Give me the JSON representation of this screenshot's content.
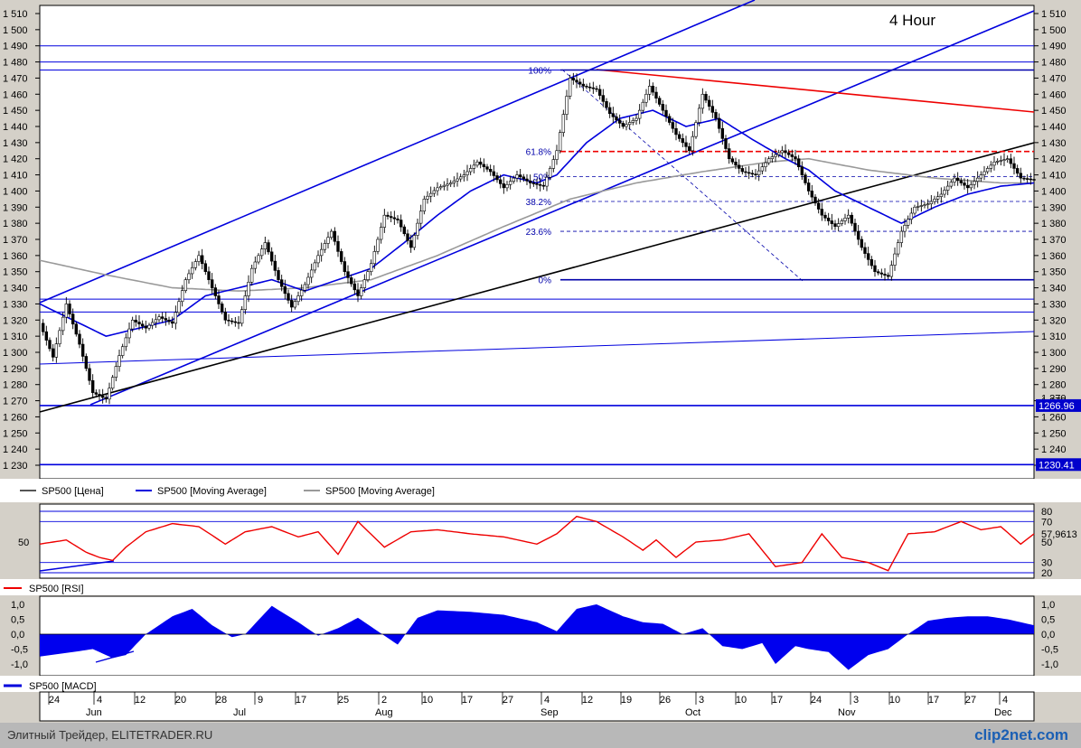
{
  "chart_data": [
    {
      "type": "candlestick",
      "title": "4 Hour",
      "ylim": [
        1225,
        1515
      ],
      "y_ticks": [
        "1 510",
        "1 500",
        "1 490",
        "1 480",
        "1 470",
        "1 460",
        "1 450",
        "1 440",
        "1 430",
        "1 420",
        "1 410",
        "1 400",
        "1 390",
        "1 380",
        "1 370",
        "1 360",
        "1 350",
        "1 340",
        "1 330",
        "1 320",
        "1 310",
        "1 300",
        "1 290",
        "1 280",
        "1 270",
        "1 260",
        "1 250",
        "1 240",
        "1 230"
      ],
      "y_tick_values": [
        1510,
        1500,
        1490,
        1480,
        1470,
        1460,
        1450,
        1440,
        1430,
        1420,
        1410,
        1400,
        1390,
        1380,
        1370,
        1360,
        1350,
        1340,
        1330,
        1320,
        1310,
        1300,
        1290,
        1280,
        1270,
        1260,
        1250,
        1240,
        1230
      ],
      "price_tags": [
        {
          "label": "1266.96",
          "value": 1267.0
        },
        {
          "label": "1230.41",
          "value": 1230.4
        }
      ],
      "partial_tick": {
        "label": "1 270",
        "value": 1270
      },
      "fib_levels": [
        {
          "label": "100%",
          "value": 1475
        },
        {
          "label": "61.8%",
          "value": 1424.5
        },
        {
          "label": "50%",
          "value": 1409
        },
        {
          "label": "38.2%",
          "value": 1393.5
        },
        {
          "label": "23.6%",
          "value": 1375
        },
        {
          "label": "0%",
          "value": 1345
        }
      ],
      "horizontal_levels": [
        1490,
        1480,
        1475,
        1333,
        1325,
        1267,
        1230.4
      ],
      "price_keypoints": [
        [
          0,
          1318
        ],
        [
          4,
          1297
        ],
        [
          8,
          1330
        ],
        [
          12,
          1305
        ],
        [
          16,
          1275
        ],
        [
          20,
          1271
        ],
        [
          24,
          1298
        ],
        [
          28,
          1320
        ],
        [
          32,
          1315
        ],
        [
          36,
          1322
        ],
        [
          40,
          1318
        ],
        [
          44,
          1345
        ],
        [
          48,
          1360
        ],
        [
          52,
          1340
        ],
        [
          56,
          1320
        ],
        [
          60,
          1318
        ],
        [
          64,
          1352
        ],
        [
          68,
          1368
        ],
        [
          72,
          1345
        ],
        [
          76,
          1328
        ],
        [
          80,
          1342
        ],
        [
          84,
          1360
        ],
        [
          88,
          1375
        ],
        [
          92,
          1350
        ],
        [
          96,
          1335
        ],
        [
          100,
          1355
        ],
        [
          104,
          1385
        ],
        [
          108,
          1382
        ],
        [
          112,
          1365
        ],
        [
          116,
          1395
        ],
        [
          120,
          1402
        ],
        [
          124,
          1405
        ],
        [
          128,
          1410
        ],
        [
          132,
          1418
        ],
        [
          136,
          1412
        ],
        [
          140,
          1402
        ],
        [
          144,
          1410
        ],
        [
          148,
          1405
        ],
        [
          152,
          1403
        ],
        [
          156,
          1425
        ],
        [
          160,
          1470
        ],
        [
          164,
          1465
        ],
        [
          168,
          1463
        ],
        [
          172,
          1448
        ],
        [
          176,
          1440
        ],
        [
          180,
          1445
        ],
        [
          184,
          1465
        ],
        [
          188,
          1450
        ],
        [
          192,
          1435
        ],
        [
          196,
          1425
        ],
        [
          200,
          1460
        ],
        [
          204,
          1445
        ],
        [
          208,
          1420
        ],
        [
          212,
          1412
        ],
        [
          216,
          1410
        ],
        [
          220,
          1420
        ],
        [
          224,
          1425
        ],
        [
          228,
          1420
        ],
        [
          232,
          1400
        ],
        [
          236,
          1385
        ],
        [
          240,
          1378
        ],
        [
          244,
          1385
        ],
        [
          248,
          1365
        ],
        [
          252,
          1350
        ],
        [
          256,
          1347
        ],
        [
          260,
          1375
        ],
        [
          264,
          1390
        ],
        [
          268,
          1392
        ],
        [
          272,
          1398
        ],
        [
          276,
          1408
        ],
        [
          280,
          1402
        ],
        [
          284,
          1410
        ],
        [
          288,
          1418
        ],
        [
          292,
          1420
        ],
        [
          296,
          1408
        ],
        [
          300,
          1407
        ]
      ],
      "ma_fast_keypoints": [
        [
          0,
          1330
        ],
        [
          10,
          1320
        ],
        [
          20,
          1310
        ],
        [
          30,
          1315
        ],
        [
          40,
          1320
        ],
        [
          50,
          1335
        ],
        [
          60,
          1340
        ],
        [
          70,
          1345
        ],
        [
          80,
          1338
        ],
        [
          90,
          1345
        ],
        [
          100,
          1352
        ],
        [
          110,
          1368
        ],
        [
          120,
          1385
        ],
        [
          130,
          1400
        ],
        [
          140,
          1410
        ],
        [
          150,
          1405
        ],
        [
          156,
          1410
        ],
        [
          165,
          1430
        ],
        [
          175,
          1445
        ],
        [
          185,
          1450
        ],
        [
          195,
          1440
        ],
        [
          205,
          1445
        ],
        [
          215,
          1432
        ],
        [
          225,
          1420
        ],
        [
          232,
          1413
        ],
        [
          240,
          1400
        ],
        [
          250,
          1390
        ],
        [
          260,
          1380
        ],
        [
          270,
          1390
        ],
        [
          280,
          1398
        ],
        [
          290,
          1403
        ],
        [
          300,
          1405
        ]
      ],
      "ma_slow_keypoints": [
        [
          0,
          1357
        ],
        [
          20,
          1348
        ],
        [
          40,
          1340
        ],
        [
          60,
          1338
        ],
        [
          80,
          1340
        ],
        [
          100,
          1345
        ],
        [
          120,
          1360
        ],
        [
          140,
          1378
        ],
        [
          160,
          1395
        ],
        [
          180,
          1405
        ],
        [
          200,
          1412
        ],
        [
          220,
          1418
        ],
        [
          232,
          1420
        ],
        [
          250,
          1413
        ],
        [
          270,
          1408
        ],
        [
          290,
          1405
        ],
        [
          300,
          1405
        ]
      ],
      "legend": [
        {
          "name": "SP500 [Цена]",
          "color": "#555555"
        },
        {
          "name": "SP500 [Moving Average]",
          "color": "#0000dd"
        },
        {
          "name": "SP500 [Moving Average]",
          "color": "#999999"
        }
      ]
    },
    {
      "type": "line",
      "title": "SP500 [RSI]",
      "ylim": [
        15,
        87
      ],
      "left_tick": "50",
      "right_ticks": [
        "80",
        "70",
        "50",
        "30",
        "20"
      ],
      "right_tick_values": [
        80,
        70,
        50,
        30,
        20
      ],
      "current_value": "57,9613",
      "levels": [
        80,
        70,
        30,
        20
      ],
      "rsi_keypoints": [
        [
          0,
          48
        ],
        [
          8,
          52
        ],
        [
          14,
          40
        ],
        [
          18,
          35
        ],
        [
          22,
          32
        ],
        [
          26,
          45
        ],
        [
          32,
          60
        ],
        [
          40,
          68
        ],
        [
          48,
          65
        ],
        [
          56,
          48
        ],
        [
          62,
          60
        ],
        [
          70,
          65
        ],
        [
          78,
          55
        ],
        [
          84,
          60
        ],
        [
          90,
          38
        ],
        [
          96,
          70
        ],
        [
          104,
          45
        ],
        [
          112,
          60
        ],
        [
          120,
          62
        ],
        [
          130,
          58
        ],
        [
          140,
          55
        ],
        [
          150,
          48
        ],
        [
          156,
          58
        ],
        [
          162,
          75
        ],
        [
          168,
          70
        ],
        [
          176,
          55
        ],
        [
          182,
          42
        ],
        [
          186,
          52
        ],
        [
          192,
          35
        ],
        [
          198,
          50
        ],
        [
          206,
          52
        ],
        [
          214,
          58
        ],
        [
          222,
          26
        ],
        [
          230,
          30
        ],
        [
          236,
          58
        ],
        [
          242,
          35
        ],
        [
          250,
          30
        ],
        [
          256,
          22
        ],
        [
          262,
          58
        ],
        [
          270,
          60
        ],
        [
          278,
          70
        ],
        [
          284,
          62
        ],
        [
          290,
          65
        ],
        [
          296,
          48
        ],
        [
          300,
          58
        ]
      ]
    },
    {
      "type": "area",
      "title": "SP500 [MACD]",
      "ylim": [
        -1.3,
        1.3
      ],
      "left_ticks": [
        "1,0",
        "0,5",
        "0,0",
        "-0,5",
        "-1,0"
      ],
      "right_ticks": [
        "1,0",
        "0,5",
        "0,0",
        "-0,5",
        "-1,0"
      ],
      "tick_values": [
        1.0,
        0.5,
        0.0,
        -0.5,
        -1.0
      ],
      "macd_keypoints": [
        [
          0,
          -0.75
        ],
        [
          10,
          -0.6
        ],
        [
          16,
          -0.5
        ],
        [
          22,
          -0.8
        ],
        [
          26,
          -0.7
        ],
        [
          32,
          0.0
        ],
        [
          40,
          0.6
        ],
        [
          46,
          0.85
        ],
        [
          52,
          0.3
        ],
        [
          58,
          -0.1
        ],
        [
          62,
          0.0
        ],
        [
          70,
          0.95
        ],
        [
          78,
          0.4
        ],
        [
          84,
          -0.05
        ],
        [
          90,
          0.2
        ],
        [
          96,
          0.55
        ],
        [
          102,
          0.1
        ],
        [
          108,
          -0.35
        ],
        [
          114,
          0.55
        ],
        [
          120,
          0.8
        ],
        [
          130,
          0.75
        ],
        [
          140,
          0.65
        ],
        [
          150,
          0.4
        ],
        [
          156,
          0.1
        ],
        [
          162,
          0.85
        ],
        [
          168,
          1.0
        ],
        [
          176,
          0.6
        ],
        [
          182,
          0.4
        ],
        [
          188,
          0.35
        ],
        [
          194,
          0.0
        ],
        [
          200,
          0.2
        ],
        [
          206,
          -0.4
        ],
        [
          212,
          -0.5
        ],
        [
          218,
          -0.3
        ],
        [
          222,
          -1.0
        ],
        [
          228,
          -0.4
        ],
        [
          232,
          -0.5
        ],
        [
          238,
          -0.6
        ],
        [
          244,
          -1.2
        ],
        [
          250,
          -0.7
        ],
        [
          256,
          -0.5
        ],
        [
          262,
          0.0
        ],
        [
          268,
          0.45
        ],
        [
          274,
          0.55
        ],
        [
          280,
          0.6
        ],
        [
          286,
          0.6
        ],
        [
          292,
          0.5
        ],
        [
          298,
          0.35
        ],
        [
          300,
          0.3
        ]
      ]
    }
  ],
  "time_axis": {
    "days": [
      {
        "label": "24",
        "x": 60
      },
      {
        "label": "4",
        "x": 110
      },
      {
        "label": "12",
        "x": 155
      },
      {
        "label": "20",
        "x": 200
      },
      {
        "label": "28",
        "x": 245
      },
      {
        "label": "9",
        "x": 288
      },
      {
        "label": "17",
        "x": 333
      },
      {
        "label": "25",
        "x": 380
      },
      {
        "label": "2",
        "x": 425
      },
      {
        "label": "10",
        "x": 473
      },
      {
        "label": "17",
        "x": 517
      },
      {
        "label": "27",
        "x": 562
      },
      {
        "label": "4",
        "x": 605
      },
      {
        "label": "12",
        "x": 650
      },
      {
        "label": "19",
        "x": 693
      },
      {
        "label": "26",
        "x": 736
      },
      {
        "label": "3",
        "x": 776
      },
      {
        "label": "10",
        "x": 820
      },
      {
        "label": "17",
        "x": 860
      },
      {
        "label": "24",
        "x": 903
      },
      {
        "label": "3",
        "x": 947
      },
      {
        "label": "10",
        "x": 990
      },
      {
        "label": "17",
        "x": 1033
      },
      {
        "label": "27",
        "x": 1074
      },
      {
        "label": "4",
        "x": 1112
      }
    ],
    "months": [
      {
        "label": "Jun",
        "x": 95
      },
      {
        "label": "Jul",
        "x": 258
      },
      {
        "label": "Aug",
        "x": 415
      },
      {
        "label": "Sep",
        "x": 598
      },
      {
        "label": "Oct",
        "x": 758
      },
      {
        "label": "Nov",
        "x": 927
      },
      {
        "label": "Dec",
        "x": 1100
      }
    ]
  },
  "footer": {
    "credit": "Элитный Трейдер, ELITETRADER.RU",
    "logo": "clip2net.com"
  }
}
